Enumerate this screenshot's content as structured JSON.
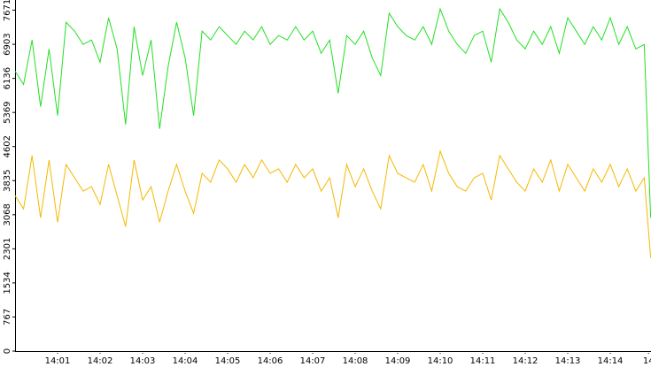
{
  "chart_data": {
    "type": "line",
    "x": [
      0,
      0.2,
      0.4,
      0.6,
      0.8,
      1,
      1.2,
      1.4,
      1.6,
      1.8,
      2,
      2.2,
      2.4,
      2.6,
      2.8,
      3,
      3.2,
      3.4,
      3.6,
      3.8,
      4,
      4.2,
      4.4,
      4.6,
      4.8,
      5,
      5.2,
      5.4,
      5.6,
      5.8,
      6,
      6.2,
      6.4,
      6.6,
      6.8,
      7,
      7.2,
      7.4,
      7.6,
      7.8,
      8,
      8.2,
      8.4,
      8.6,
      8.8,
      9,
      9.2,
      9.4,
      9.6,
      9.8,
      10,
      10.2,
      10.4,
      10.6,
      10.8,
      11,
      11.2,
      11.4,
      11.6,
      11.8,
      12,
      12.2,
      12.4,
      12.6,
      12.8,
      13,
      13.2,
      13.4,
      13.6,
      13.8,
      14,
      14.2,
      14.4,
      14.6,
      14.8,
      14.95
    ],
    "series": [
      {
        "color": "#22e022",
        "values": [
          6300,
          6000,
          7000,
          5500,
          6800,
          5300,
          7400,
          7200,
          6900,
          7000,
          6500,
          7500,
          6800,
          5100,
          7300,
          6200,
          7000,
          5000,
          6400,
          7400,
          6600,
          5300,
          7200,
          7000,
          7300,
          7100,
          6900,
          7200,
          7000,
          7300,
          6900,
          7100,
          7000,
          7300,
          7000,
          7200,
          6700,
          7000,
          5800,
          7100,
          6900,
          7200,
          6600,
          6200,
          7600,
          7300,
          7100,
          7000,
          7300,
          6900,
          7700,
          7200,
          6900,
          6700,
          7100,
          7200,
          6500,
          7700,
          7400,
          7000,
          6800,
          7200,
          6900,
          7300,
          6700,
          7500,
          7200,
          6900,
          7300,
          7000,
          7500,
          6900,
          7300,
          6800,
          6900,
          3000
        ]
      },
      {
        "color": "#f5b800",
        "values": [
          3500,
          3200,
          4400,
          3000,
          4300,
          2900,
          4200,
          3900,
          3600,
          3700,
          3300,
          4200,
          3500,
          2800,
          4300,
          3400,
          3700,
          2900,
          3600,
          4200,
          3600,
          3100,
          4000,
          3800,
          4300,
          4100,
          3800,
          4200,
          3900,
          4300,
          4000,
          4100,
          3800,
          4200,
          3900,
          4100,
          3600,
          3900,
          3000,
          4200,
          3700,
          4100,
          3600,
          3200,
          4400,
          4000,
          3900,
          3800,
          4200,
          3600,
          4500,
          4000,
          3700,
          3600,
          3900,
          4000,
          3400,
          4400,
          4100,
          3800,
          3600,
          4100,
          3800,
          4300,
          3600,
          4200,
          3900,
          3600,
          4100,
          3800,
          4200,
          3700,
          4100,
          3600,
          3900,
          2100
        ]
      }
    ],
    "xlim": [
      0,
      14.958
    ],
    "xticks": [
      {
        "value": 1,
        "label": "14:01"
      },
      {
        "value": 2,
        "label": "14:02"
      },
      {
        "value": 3,
        "label": "14:03"
      },
      {
        "value": 4,
        "label": "14:04"
      },
      {
        "value": 5,
        "label": "14:05"
      },
      {
        "value": 6,
        "label": "14:06"
      },
      {
        "value": 7,
        "label": "14:07"
      },
      {
        "value": 8,
        "label": "14:08"
      },
      {
        "value": 9,
        "label": "14:09"
      },
      {
        "value": 10,
        "label": "14:10"
      },
      {
        "value": 11,
        "label": "14:11"
      },
      {
        "value": 12,
        "label": "14:12"
      },
      {
        "value": 13,
        "label": "14:13"
      },
      {
        "value": 14,
        "label": "14:14"
      },
      {
        "value": 14.9,
        "label": "14"
      }
    ],
    "ylim": [
      0,
      7900
    ],
    "yticks": [
      0,
      767,
      1534,
      2301,
      3068,
      3835,
      4602,
      5369,
      6136,
      6903,
      7671
    ],
    "grid": false
  }
}
